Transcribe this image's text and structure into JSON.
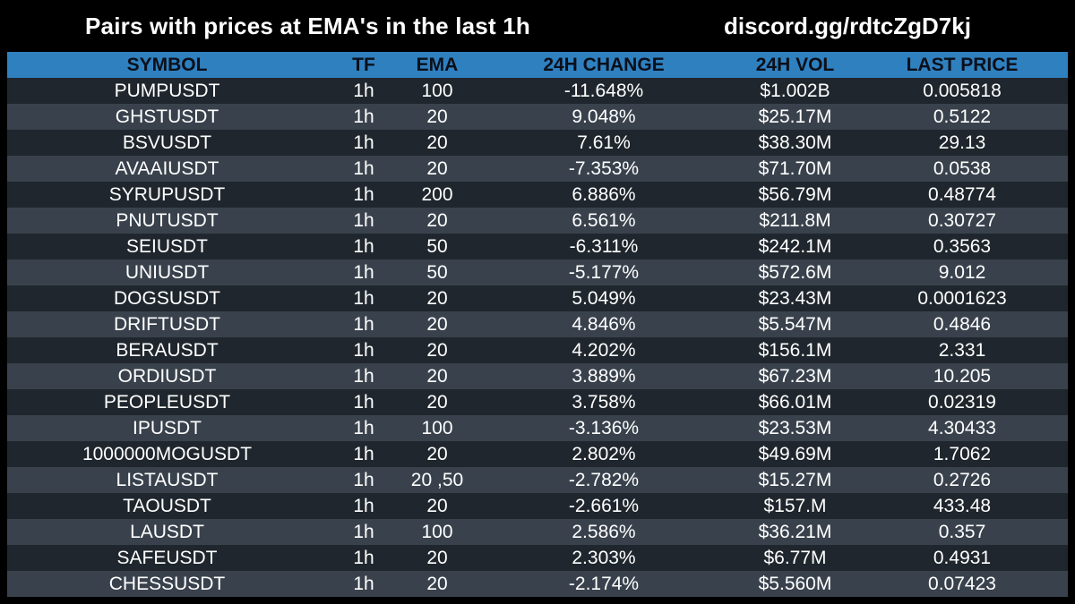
{
  "title": "Pairs with prices at EMA's in the last 1h",
  "discord": "discord.gg/rdtcZgD7kj",
  "colors": {
    "background": "#000000",
    "header": "#2f80bf",
    "row_dark": "#1f262d",
    "row_light": "#39424c",
    "text": "#ffffff"
  },
  "headers": {
    "symbol": "SYMBOL",
    "tf": "TF",
    "ema": "EMA",
    "change": "24H CHANGE",
    "vol": "24H VOL",
    "price": "LAST PRICE"
  },
  "rows": [
    {
      "symbol": "PUMPUSDT",
      "tf": "1h",
      "ema": "100",
      "change": "-11.648%",
      "vol": "$1.002B",
      "price": "0.005818"
    },
    {
      "symbol": "GHSTUSDT",
      "tf": "1h",
      "ema": "20",
      "change": "9.048%",
      "vol": "$25.17M",
      "price": "0.5122"
    },
    {
      "symbol": "BSVUSDT",
      "tf": "1h",
      "ema": "20",
      "change": "7.61%",
      "vol": "$38.30M",
      "price": "29.13"
    },
    {
      "symbol": "AVAAIUSDT",
      "tf": "1h",
      "ema": "20",
      "change": "-7.353%",
      "vol": "$71.70M",
      "price": "0.0538"
    },
    {
      "symbol": "SYRUPUSDT",
      "tf": "1h",
      "ema": "200",
      "change": "6.886%",
      "vol": "$56.79M",
      "price": "0.48774"
    },
    {
      "symbol": "PNUTUSDT",
      "tf": "1h",
      "ema": "20",
      "change": "6.561%",
      "vol": "$211.8M",
      "price": "0.30727"
    },
    {
      "symbol": "SEIUSDT",
      "tf": "1h",
      "ema": "50",
      "change": "-6.311%",
      "vol": "$242.1M",
      "price": "0.3563"
    },
    {
      "symbol": "UNIUSDT",
      "tf": "1h",
      "ema": "50",
      "change": "-5.177%",
      "vol": "$572.6M",
      "price": "9.012"
    },
    {
      "symbol": "DOGSUSDT",
      "tf": "1h",
      "ema": "20",
      "change": "5.049%",
      "vol": "$23.43M",
      "price": "0.0001623"
    },
    {
      "symbol": "DRIFTUSDT",
      "tf": "1h",
      "ema": "20",
      "change": "4.846%",
      "vol": "$5.547M",
      "price": "0.4846"
    },
    {
      "symbol": "BERAUSDT",
      "tf": "1h",
      "ema": "20",
      "change": "4.202%",
      "vol": "$156.1M",
      "price": "2.331"
    },
    {
      "symbol": "ORDIUSDT",
      "tf": "1h",
      "ema": "20",
      "change": "3.889%",
      "vol": "$67.23M",
      "price": "10.205"
    },
    {
      "symbol": "PEOPLEUSDT",
      "tf": "1h",
      "ema": "20",
      "change": "3.758%",
      "vol": "$66.01M",
      "price": "0.02319"
    },
    {
      "symbol": "IPUSDT",
      "tf": "1h",
      "ema": "100",
      "change": "-3.136%",
      "vol": "$23.53M",
      "price": "4.30433"
    },
    {
      "symbol": "1000000MOGUSDT",
      "tf": "1h",
      "ema": "20",
      "change": "2.802%",
      "vol": "$49.69M",
      "price": "1.7062"
    },
    {
      "symbol": "LISTAUSDT",
      "tf": "1h",
      "ema": "20 ,50",
      "change": "-2.782%",
      "vol": "$15.27M",
      "price": "0.2726"
    },
    {
      "symbol": "TAOUSDT",
      "tf": "1h",
      "ema": "20",
      "change": "-2.661%",
      "vol": "$157.M",
      "price": "433.48"
    },
    {
      "symbol": "LAUSDT",
      "tf": "1h",
      "ema": "100",
      "change": "2.586%",
      "vol": "$36.21M",
      "price": "0.357"
    },
    {
      "symbol": "SAFEUSDT",
      "tf": "1h",
      "ema": "20",
      "change": "2.303%",
      "vol": "$6.77M",
      "price": "0.4931"
    },
    {
      "symbol": "CHESSUSDT",
      "tf": "1h",
      "ema": "20",
      "change": "-2.174%",
      "vol": "$5.560M",
      "price": "0.07423"
    }
  ]
}
